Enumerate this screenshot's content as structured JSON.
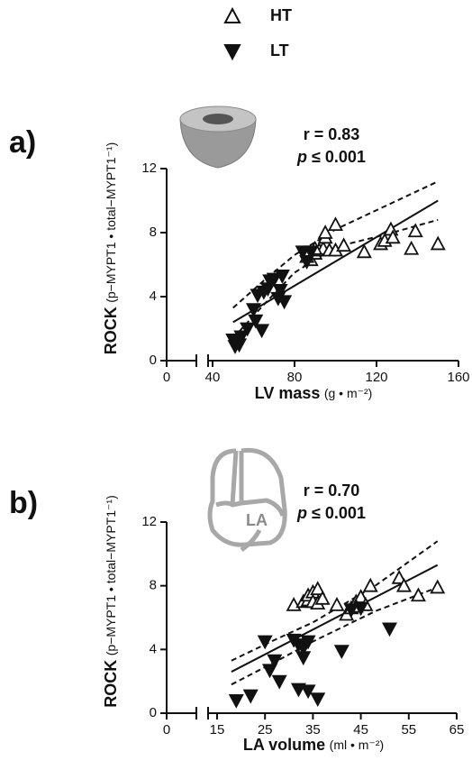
{
  "chart_data": [
    {
      "type": "scatter",
      "panel_label": "a)",
      "stat_r": "r = 0.83",
      "stat_p_symbol": "p",
      "stat_p": "≤ 0.001",
      "x_label": "LV mass",
      "x_unit": "(g • m⁻²)",
      "y_label": "ROCK",
      "y_unit": "(p−MYPT1 • total−MYPT1⁻¹)",
      "xlim": [
        40,
        160
      ],
      "xticks": [
        0,
        40,
        80,
        120,
        160
      ],
      "axis_break": true,
      "ylim": [
        0,
        12
      ],
      "yticks": [
        0,
        4,
        8,
        12
      ],
      "series": [
        {
          "name": "HT",
          "color": "#111111",
          "marker": "open-triangle-up",
          "x": [
            88,
            90,
            92,
            94,
            95,
            95,
            97,
            100,
            100,
            104,
            114,
            122,
            124,
            127,
            128,
            137,
            139,
            150,
            90,
            86
          ],
          "values": [
            6.3,
            6.7,
            6.9,
            7.0,
            7.7,
            8.0,
            6.9,
            8.5,
            6.9,
            7.2,
            6.8,
            7.3,
            7.5,
            8.2,
            7.7,
            7.0,
            8.1,
            7.3,
            7.0,
            6.5
          ]
        },
        {
          "name": "LT",
          "color": "#111111",
          "marker": "filled-triangle-down",
          "x": [
            50,
            51,
            53,
            54,
            57,
            60,
            61,
            62,
            64,
            65,
            67,
            68,
            70,
            72,
            73,
            74,
            75,
            84,
            86,
            88
          ],
          "values": [
            1.3,
            0.9,
            1.0,
            1.5,
            2.0,
            3.2,
            2.5,
            4.1,
            1.9,
            4.3,
            4.5,
            5.0,
            5.1,
            3.9,
            4.4,
            5.3,
            3.7,
            6.8,
            6.2,
            6.8
          ]
        }
      ],
      "fit": {
        "x": [
          50,
          150
        ],
        "values": [
          2.4,
          10.0
        ]
      },
      "ci_upper": {
        "x": [
          50,
          65,
          80,
          100,
          125,
          150
        ],
        "values": [
          3.3,
          5.0,
          6.6,
          8.2,
          9.7,
          11.2
        ]
      },
      "ci_lower": {
        "x": [
          50,
          65,
          80,
          100,
          125,
          150
        ],
        "values": [
          1.4,
          3.5,
          5.5,
          7.1,
          7.9,
          8.8
        ]
      }
    },
    {
      "type": "scatter",
      "panel_label": "b)",
      "icon_label": "LA",
      "stat_r": "r = 0.70",
      "stat_p_symbol": "p",
      "stat_p": "≤ 0.001",
      "x_label": "LA volume",
      "x_unit": "(ml • m⁻²)",
      "y_label": "ROCK",
      "y_unit": "(p−MYPT1 • total−MYPT1⁻¹)",
      "xlim": [
        15,
        65
      ],
      "xticks": [
        0,
        15,
        25,
        35,
        45,
        55,
        65
      ],
      "axis_break": true,
      "ylim": [
        0,
        12
      ],
      "yticks": [
        0,
        4,
        8,
        12
      ],
      "series": [
        {
          "color": "#111111",
          "marker": "open-triangle-up",
          "x": [
            31,
            33,
            34,
            34,
            35,
            36,
            35,
            36,
            37,
            40,
            42,
            43,
            44,
            45,
            46,
            47,
            53,
            54,
            57,
            61,
            44
          ],
          "values": [
            6.8,
            7.0,
            7.1,
            7.4,
            7.6,
            7.8,
            7.0,
            6.9,
            7.2,
            6.8,
            6.2,
            6.6,
            7.0,
            7.3,
            6.8,
            8.0,
            8.5,
            8.0,
            7.4,
            7.9,
            6.7
          ]
        },
        {
          "color": "#111111",
          "marker": "filled-triangle-down",
          "x": [
            19,
            22,
            25,
            26,
            27,
            28,
            31,
            32,
            32,
            33,
            33,
            34,
            34,
            36,
            41,
            43,
            45,
            51
          ],
          "values": [
            0.8,
            1.1,
            4.5,
            2.7,
            3.3,
            2.0,
            4.6,
            1.5,
            4.3,
            4.1,
            3.5,
            1.4,
            4.5,
            0.9,
            3.9,
            6.5,
            6.6,
            5.3
          ]
        }
      ],
      "fit": {
        "x": [
          18,
          61
        ],
        "values": [
          2.6,
          9.3
        ]
      },
      "ci_upper": {
        "x": [
          18,
          27,
          35,
          48,
          61
        ],
        "values": [
          3.3,
          4.6,
          5.7,
          8.0,
          10.8
        ]
      },
      "ci_lower": {
        "x": [
          18,
          27,
          35,
          48,
          61
        ],
        "values": [
          1.8,
          3.2,
          4.5,
          6.4,
          7.9
        ]
      }
    }
  ]
}
